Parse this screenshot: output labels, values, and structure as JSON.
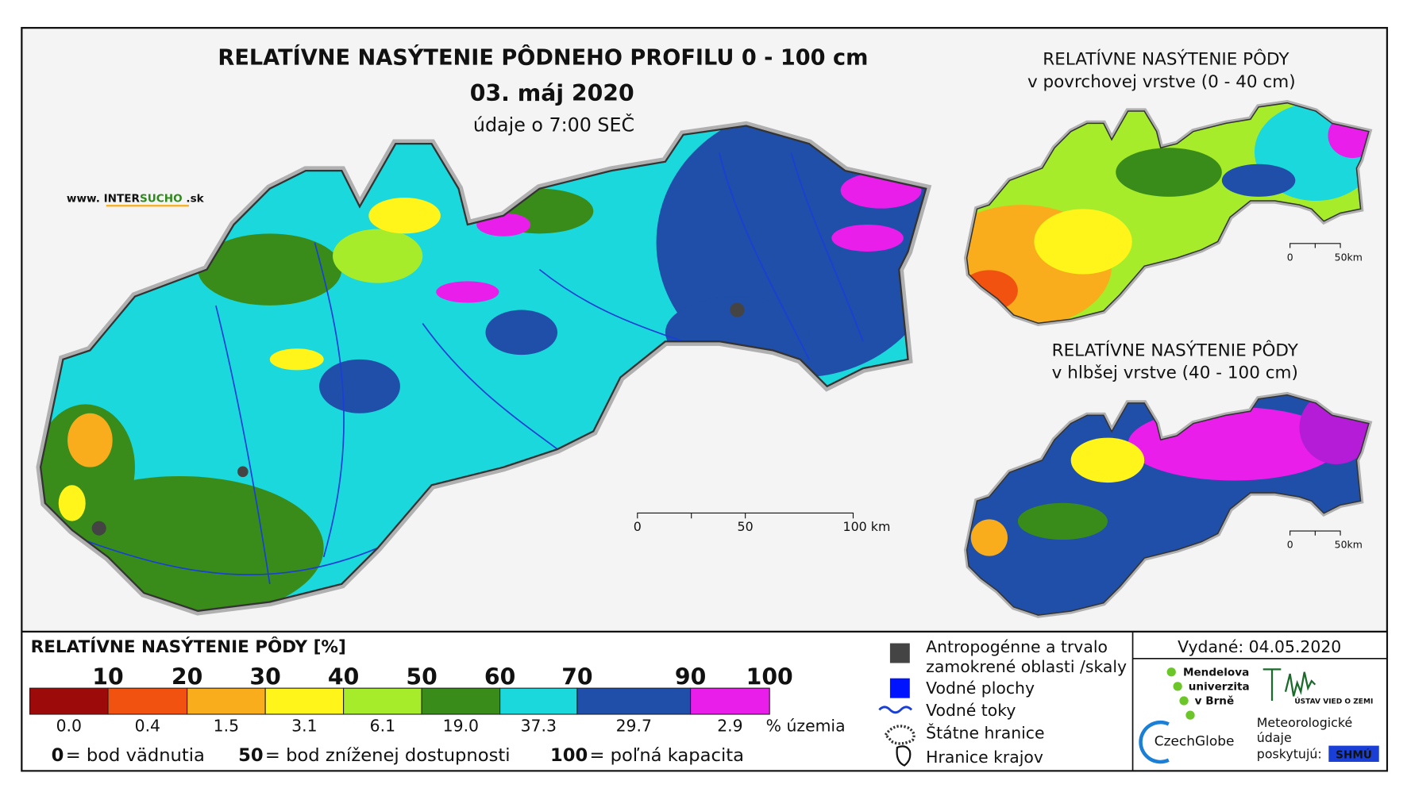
{
  "header": {
    "title": "RELATÍVNE NASÝTENIE PÔDNEHO PROFILU 0 - 100 cm",
    "date": "03. máj 2020",
    "time_note": "údaje o 7:00 SEČ",
    "website": {
      "prefix": "www. INTER",
      "highlight": "SUCHO",
      "suffix": " .sk"
    }
  },
  "main_map": {
    "scale_labels": [
      "0",
      "50",
      "100 km"
    ]
  },
  "insets": [
    {
      "title": "RELATÍVNE NASÝTENIE PÔDY",
      "subtitle": "v povrchovej vrstve (0 - 40 cm)",
      "scale_labels": [
        "0",
        "50km"
      ]
    },
    {
      "title": "RELATÍVNE NASÝTENIE PÔDY",
      "subtitle": "v hlbšej vrstve (40 - 100 cm)",
      "scale_labels": [
        "0",
        "50km"
      ]
    }
  ],
  "legend": {
    "title": "RELATÍVNE NASÝTENIE PÔDY [%]",
    "thresholds": [
      "10",
      "20",
      "30",
      "40",
      "50",
      "60",
      "70",
      "90",
      "100"
    ],
    "classes": [
      {
        "color": "#9c0a0a",
        "area": "0.0"
      },
      {
        "color": "#f2520f",
        "area": "0.4"
      },
      {
        "color": "#f9ad1c",
        "area": "1.5"
      },
      {
        "color": "#fff51a",
        "area": "3.1"
      },
      {
        "color": "#a6ec2a",
        "area": "6.1"
      },
      {
        "color": "#3a8c1a",
        "area": "19.0"
      },
      {
        "color": "#1ad8dc",
        "area": "37.3"
      },
      {
        "color": "#1f4fa8",
        "area": "29.7"
      },
      {
        "color": "#ea1eea",
        "area": "2.9"
      }
    ],
    "area_unit": "% územia",
    "notes": [
      {
        "key": "0",
        "text": "= bod vädnutia"
      },
      {
        "key": "50",
        "text": "= bod zníženej dostupnosti"
      },
      {
        "key": "100",
        "text": "= poľná kapacita"
      }
    ]
  },
  "symbols": [
    "Antropogénne a trvalo",
    "zamokrené oblasti /skaly",
    "Vodné plochy",
    "Vodné toky",
    "Štátne hranice",
    "Hranice krajov"
  ],
  "credits": {
    "issued": "Vydané: 04.05.2020",
    "mendel": [
      "Mendelova",
      "univerzita",
      "v Brně"
    ],
    "czechglobe": "CzechGlobe",
    "uvz": "ÚSTAV VIED O ZEMI",
    "meteo": [
      "Meteorologické",
      "údaje",
      "poskytujú:"
    ],
    "shmu": "SHMÚ"
  }
}
